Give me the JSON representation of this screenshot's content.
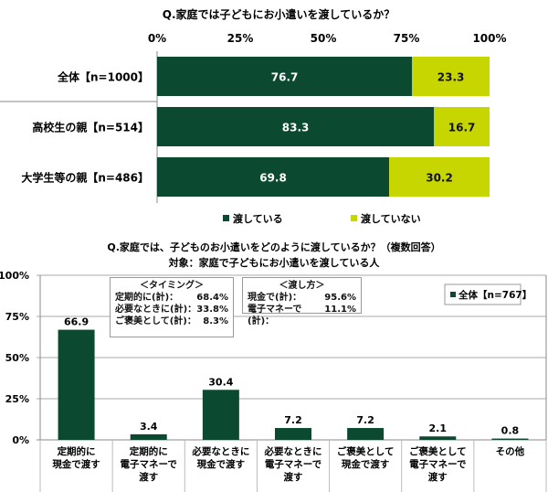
{
  "chart_data": [
    {
      "type": "bar",
      "orientation": "horizontal",
      "stacked": true,
      "title": "Q.家庭では子どもにお小遣いを渡しているか？",
      "categories": [
        "全体【n=1000】",
        "高校生の親【n=514】",
        "大学生等の親【n=486】"
      ],
      "series": [
        {
          "name": "渡している",
          "values": [
            76.7,
            83.3,
            69.8
          ],
          "color": "#0b4a30"
        },
        {
          "name": "渡していない",
          "values": [
            23.3,
            16.7,
            30.2
          ],
          "color": "#c8d600"
        }
      ],
      "xticks": [
        "0%",
        "25%",
        "50%",
        "75%",
        "100%"
      ],
      "xlim": [
        0,
        100
      ],
      "legend": "bottom"
    },
    {
      "type": "bar",
      "title": "Q.家庭では、子どものお小遣いをどのように渡しているか？（複数回答）",
      "subtitle": "対象：家庭で子どもにお小遣いを渡している人",
      "categories": [
        [
          "定期的に",
          "現金で渡す"
        ],
        [
          "定期的に",
          "電子マネーで",
          "渡す"
        ],
        [
          "必要なときに",
          "現金で渡す"
        ],
        [
          "必要なときに",
          "電子マネーで",
          "渡す"
        ],
        [
          "ご褒美として",
          "現金で渡す"
        ],
        [
          "ご褒美として",
          "電子マネーで",
          "渡す"
        ],
        [
          "その他"
        ]
      ],
      "series": [
        {
          "name": "全体【n=767】",
          "values": [
            66.9,
            3.4,
            30.4,
            7.2,
            7.2,
            2.1,
            0.8
          ],
          "color": "#0b4a30"
        }
      ],
      "yticks": [
        "0%",
        "25%",
        "50%",
        "75%",
        "100%"
      ],
      "ylim": [
        0,
        100
      ],
      "legend": "top-right",
      "annotations": {
        "timing": {
          "title": "＜タイミング＞",
          "rows": [
            [
              "定期的に(計)：",
              "68.4%"
            ],
            [
              "必要なときに(計)：",
              "33.8%"
            ],
            [
              "ご褒美として(計)：",
              "8.3%"
            ]
          ]
        },
        "method": {
          "title": "＜渡し方＞",
          "rows": [
            [
              "現金で(計)：",
              "95.6%"
            ],
            [
              "電子マネーで(計)：",
              "11.1%"
            ]
          ]
        }
      }
    }
  ]
}
